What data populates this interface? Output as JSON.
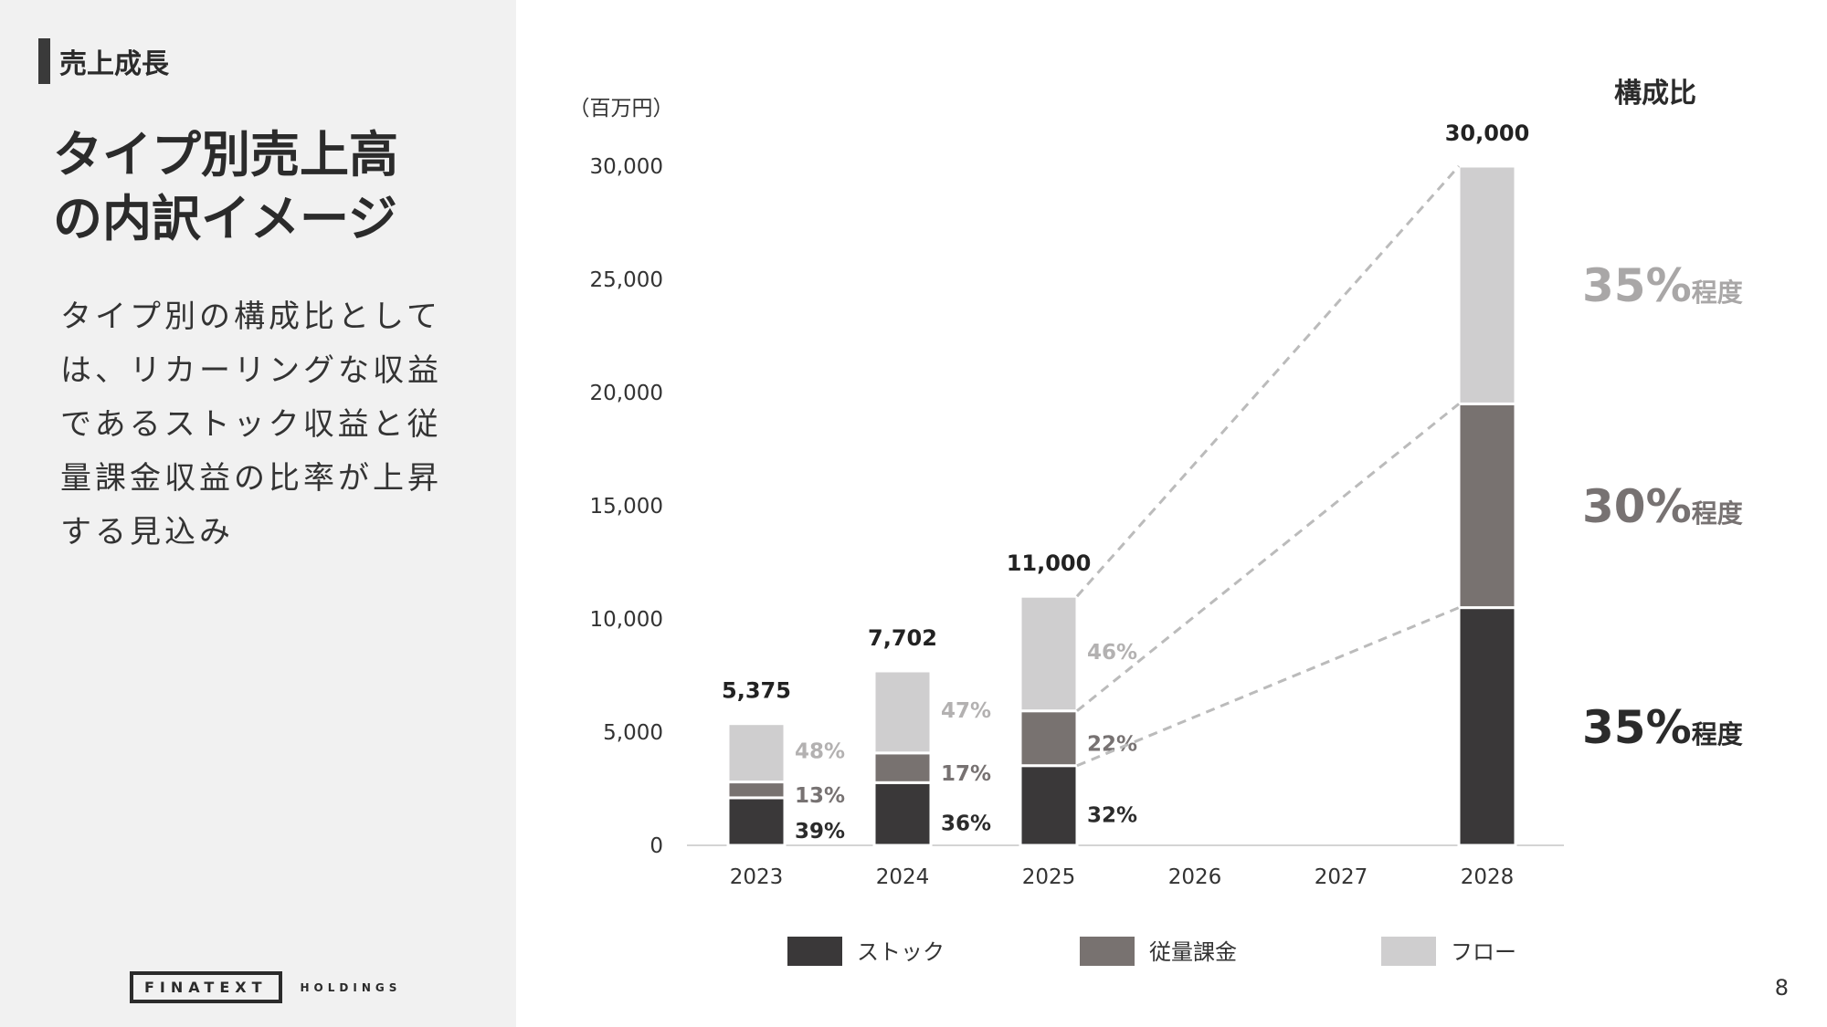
{
  "section": {
    "label": "売上成長"
  },
  "slide": {
    "title_lines": [
      "タイプ別売上高",
      "の内訳イメージ"
    ],
    "body_lines": [
      "タイプ別の構成比として",
      "は、リカーリングな収益",
      "であるストック収益と従",
      "量課金収益の比率が上昇",
      "する見込み"
    ]
  },
  "logo": {
    "name": "FINATEXT",
    "sub": "HOLDINGS"
  },
  "page_number": "8",
  "colors": {
    "stock": "#3a3839",
    "usage": "#787270",
    "flow": "#cfcecf",
    "dash": "#bbbbbb"
  },
  "chart_data": {
    "type": "bar",
    "stacked": true,
    "unit_label": "（百万円）",
    "categories": [
      "2023",
      "2024",
      "2025",
      "2026",
      "2027",
      "2028"
    ],
    "ylim": [
      0,
      30000
    ],
    "yticks": [
      0,
      5000,
      10000,
      15000,
      20000,
      25000,
      30000
    ],
    "ytick_labels": [
      "0",
      "5,000",
      "10,000",
      "15,000",
      "20,000",
      "25,000",
      "30,000"
    ],
    "series": [
      {
        "name": "ストック",
        "values": [
          2100,
          2770,
          3520,
          null,
          null,
          10500
        ],
        "labels": [
          "39%",
          "36%",
          "32%",
          null,
          null,
          null
        ]
      },
      {
        "name": "従量課金",
        "values": [
          700,
          1310,
          2420,
          null,
          null,
          9000
        ],
        "labels": [
          "13%",
          "17%",
          "22%",
          null,
          null,
          null
        ]
      },
      {
        "name": "フロー",
        "values": [
          2575,
          3622,
          5060,
          null,
          null,
          10500
        ],
        "labels": [
          "48%",
          "47%",
          "46%",
          null,
          null,
          null
        ]
      }
    ],
    "totals": [
      5375,
      7702,
      11000,
      null,
      null,
      30000
    ],
    "total_labels": [
      "5,375",
      "7,702",
      "11,000",
      "",
      "",
      "30,000"
    ],
    "composition": {
      "title": "構成比",
      "items": [
        {
          "series": "フロー",
          "value": "35%",
          "suffix": "程度"
        },
        {
          "series": "従量課金",
          "value": "30%",
          "suffix": "程度"
        },
        {
          "series": "ストック",
          "value": "35%",
          "suffix": "程度"
        }
      ]
    },
    "legend_position": "bottom",
    "grid": false
  }
}
